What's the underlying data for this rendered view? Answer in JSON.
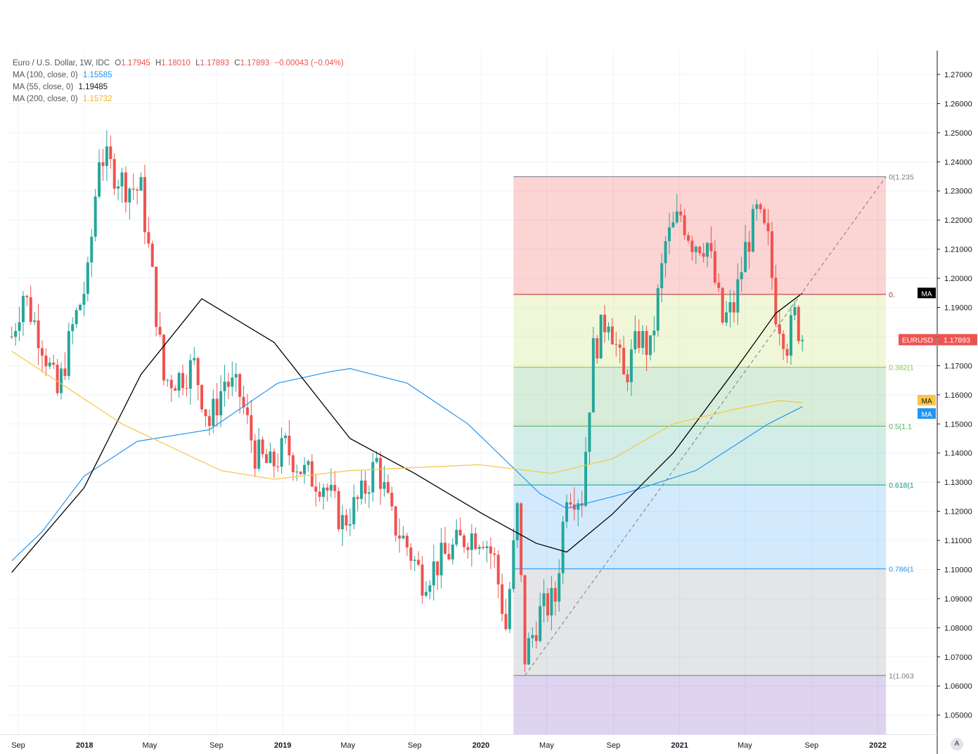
{
  "legend": {
    "title": "Euro / U.S. Dollar, 1W, IDC",
    "o_label": "O",
    "o": "1.17945",
    "h_label": "H",
    "h": "1.18010",
    "l_label": "L",
    "l": "1.17893",
    "c_label": "C",
    "c": "1.17893",
    "change": "−0.00043 (−0.04%)",
    "ma100_label": "MA (100, close, 0)",
    "ma100_value": "1.15585",
    "ma55_label": "MA (55, close, 0)",
    "ma55_value": "1.19485",
    "ma200_label": "MA (200, close, 0)",
    "ma200_value": "1.15732"
  },
  "colors": {
    "up": "#26a69a",
    "down": "#ef5350",
    "ma100": "#2196f3",
    "ma55": "#000000",
    "ma200": "#f7c548"
  },
  "auto_button": "A",
  "chart_data": {
    "type": "candlestick",
    "symbol": "EURUSD",
    "timeframe": "1W",
    "last_price": "1.17893",
    "ylim": [
      1.0434,
      1.2782
    ],
    "y_ticks": [
      "1.05000",
      "1.06000",
      "1.07000",
      "1.08000",
      "1.09000",
      "1.10000",
      "1.11000",
      "1.12000",
      "1.13000",
      "1.14000",
      "1.15000",
      "1.16000",
      "1.17000",
      "1.18000",
      "1.19000",
      "1.20000",
      "1.21000",
      "1.22000",
      "1.23000",
      "1.24000",
      "1.25000",
      "1.26000",
      "1.27000"
    ],
    "x_ticks": [
      {
        "label": "Sep",
        "date": "2017-09-01",
        "bold": false
      },
      {
        "label": "2018",
        "date": "2018-01-01",
        "bold": true
      },
      {
        "label": "May",
        "date": "2018-05-01",
        "bold": false
      },
      {
        "label": "Sep",
        "date": "2018-09-01",
        "bold": false
      },
      {
        "label": "2019",
        "date": "2019-01-01",
        "bold": true
      },
      {
        "label": "May",
        "date": "2019-05-01",
        "bold": false
      },
      {
        "label": "Sep",
        "date": "2019-09-01",
        "bold": false
      },
      {
        "label": "2020",
        "date": "2020-01-01",
        "bold": true
      },
      {
        "label": "May",
        "date": "2020-05-01",
        "bold": false
      },
      {
        "label": "Sep",
        "date": "2020-09-01",
        "bold": false
      },
      {
        "label": "2021",
        "date": "2021-01-01",
        "bold": true
      },
      {
        "label": "May",
        "date": "2021-05-01",
        "bold": false
      },
      {
        "label": "Sep",
        "date": "2021-09-01",
        "bold": false
      },
      {
        "label": "2022",
        "date": "2022-01-01",
        "bold": true
      }
    ],
    "price_path": [
      {
        "date": "2017-08-20",
        "c": 1.18
      },
      {
        "date": "2017-09-10",
        "c": 1.195
      },
      {
        "date": "2017-10-15",
        "c": 1.178
      },
      {
        "date": "2017-11-12",
        "c": 1.16
      },
      {
        "date": "2017-12-10",
        "c": 1.183
      },
      {
        "date": "2018-01-07",
        "c": 1.2
      },
      {
        "date": "2018-01-28",
        "c": 1.243
      },
      {
        "date": "2018-02-18",
        "c": 1.238
      },
      {
        "date": "2018-03-18",
        "c": 1.232
      },
      {
        "date": "2018-04-15",
        "c": 1.23
      },
      {
        "date": "2018-05-06",
        "c": 1.2
      },
      {
        "date": "2018-05-27",
        "c": 1.165
      },
      {
        "date": "2018-06-24",
        "c": 1.166
      },
      {
        "date": "2018-07-22",
        "c": 1.17
      },
      {
        "date": "2018-08-19",
        "c": 1.15
      },
      {
        "date": "2018-09-16",
        "c": 1.165
      },
      {
        "date": "2018-10-14",
        "c": 1.16
      },
      {
        "date": "2018-11-11",
        "c": 1.14
      },
      {
        "date": "2018-12-09",
        "c": 1.135
      },
      {
        "date": "2019-01-06",
        "c": 1.142
      },
      {
        "date": "2019-02-10",
        "c": 1.133
      },
      {
        "date": "2019-03-17",
        "c": 1.13
      },
      {
        "date": "2019-04-21",
        "c": 1.116
      },
      {
        "date": "2019-05-26",
        "c": 1.125
      },
      {
        "date": "2019-06-23",
        "c": 1.137
      },
      {
        "date": "2019-07-21",
        "c": 1.117
      },
      {
        "date": "2019-08-18",
        "c": 1.108
      },
      {
        "date": "2019-09-15",
        "c": 1.097
      },
      {
        "date": "2019-10-13",
        "c": 1.102
      },
      {
        "date": "2019-11-10",
        "c": 1.107
      },
      {
        "date": "2019-12-08",
        "c": 1.112
      },
      {
        "date": "2020-01-05",
        "c": 1.112
      },
      {
        "date": "2020-01-26",
        "c": 1.103
      },
      {
        "date": "2020-02-16",
        "c": 1.08
      },
      {
        "date": "2020-03-08",
        "c": 1.12
      },
      {
        "date": "2020-03-22",
        "c": 1.07
      },
      {
        "date": "2020-04-19",
        "c": 1.085
      },
      {
        "date": "2020-05-17",
        "c": 1.09
      },
      {
        "date": "2020-06-07",
        "c": 1.128
      },
      {
        "date": "2020-07-05",
        "c": 1.125
      },
      {
        "date": "2020-07-26",
        "c": 1.175
      },
      {
        "date": "2020-08-23",
        "c": 1.188
      },
      {
        "date": "2020-09-20",
        "c": 1.165
      },
      {
        "date": "2020-10-18",
        "c": 1.18
      },
      {
        "date": "2020-11-08",
        "c": 1.175
      },
      {
        "date": "2020-12-06",
        "c": 1.212
      },
      {
        "date": "2021-01-03",
        "c": 1.222
      },
      {
        "date": "2021-01-24",
        "c": 1.213
      },
      {
        "date": "2021-02-21",
        "c": 1.212
      },
      {
        "date": "2021-03-21",
        "c": 1.185
      },
      {
        "date": "2021-04-11",
        "c": 1.19
      },
      {
        "date": "2021-05-02",
        "c": 1.21
      },
      {
        "date": "2021-05-23",
        "c": 1.222
      },
      {
        "date": "2021-06-13",
        "c": 1.212
      },
      {
        "date": "2021-06-27",
        "c": 1.189
      },
      {
        "date": "2021-07-18",
        "c": 1.178
      },
      {
        "date": "2021-08-01",
        "c": 1.187
      },
      {
        "date": "2021-08-15",
        "c": 1.1789
      }
    ],
    "series": [
      {
        "name": "MA (100, close, 0)",
        "color": "#2196f3",
        "points": [
          {
            "date": "2017-08-20",
            "v": 1.103
          },
          {
            "date": "2017-10-15",
            "v": 1.113
          },
          {
            "date": "2017-12-31",
            "v": 1.132
          },
          {
            "date": "2018-04-08",
            "v": 1.144
          },
          {
            "date": "2018-08-19",
            "v": 1.148
          },
          {
            "date": "2018-12-23",
            "v": 1.164
          },
          {
            "date": "2019-03-31",
            "v": 1.168
          },
          {
            "date": "2019-05-05",
            "v": 1.169
          },
          {
            "date": "2019-08-18",
            "v": 1.164
          },
          {
            "date": "2019-12-08",
            "v": 1.15
          },
          {
            "date": "2020-04-19",
            "v": 1.126
          },
          {
            "date": "2020-06-07",
            "v": 1.121
          },
          {
            "date": "2020-09-20",
            "v": 1.126
          },
          {
            "date": "2021-01-31",
            "v": 1.134
          },
          {
            "date": "2021-06-13",
            "v": 1.15
          },
          {
            "date": "2021-08-15",
            "v": 1.1559
          }
        ]
      },
      {
        "name": "MA (55, close, 0)",
        "color": "#000000",
        "points": [
          {
            "date": "2017-08-20",
            "v": 1.099
          },
          {
            "date": "2017-12-31",
            "v": 1.128
          },
          {
            "date": "2018-04-15",
            "v": 1.167
          },
          {
            "date": "2018-08-05",
            "v": 1.193
          },
          {
            "date": "2018-12-16",
            "v": 1.178
          },
          {
            "date": "2019-05-05",
            "v": 1.145
          },
          {
            "date": "2019-09-01",
            "v": 1.133
          },
          {
            "date": "2020-01-05",
            "v": 1.119
          },
          {
            "date": "2020-04-12",
            "v": 1.109
          },
          {
            "date": "2020-06-07",
            "v": 1.106
          },
          {
            "date": "2020-08-30",
            "v": 1.119
          },
          {
            "date": "2020-12-20",
            "v": 1.14
          },
          {
            "date": "2021-04-11",
            "v": 1.168
          },
          {
            "date": "2021-06-27",
            "v": 1.188
          },
          {
            "date": "2021-08-15",
            "v": 1.1949
          }
        ]
      },
      {
        "name": "MA (200, close, 0)",
        "color": "#f7c548",
        "points": [
          {
            "date": "2017-08-20",
            "v": 1.175
          },
          {
            "date": "2018-03-11",
            "v": 1.15
          },
          {
            "date": "2018-09-09",
            "v": 1.134
          },
          {
            "date": "2018-12-16",
            "v": 1.131
          },
          {
            "date": "2019-05-05",
            "v": 1.134
          },
          {
            "date": "2019-12-29",
            "v": 1.136
          },
          {
            "date": "2020-05-10",
            "v": 1.133
          },
          {
            "date": "2020-08-30",
            "v": 1.138
          },
          {
            "date": "2020-12-20",
            "v": 1.15
          },
          {
            "date": "2021-04-11",
            "v": 1.155
          },
          {
            "date": "2021-07-04",
            "v": 1.158
          },
          {
            "date": "2021-08-15",
            "v": 1.1573
          }
        ]
      }
    ],
    "fib": {
      "start_date": "2020-03-01",
      "end_date": "2022-01-16",
      "high": 1.2349,
      "low": 1.0636,
      "levels": [
        {
          "label": "0(1.235",
          "ratio": 0,
          "color": "#787b86",
          "fill": "rgba(239,83,80,0.25)"
        },
        {
          "label": "0.",
          "ratio": 0.236,
          "color": "#b22833",
          "fill": "rgba(195,225,100,0.25)"
        },
        {
          "label": "0.382(1",
          "ratio": 0.382,
          "color": "#8bc34a",
          "fill": "rgba(76,175,80,0.22)"
        },
        {
          "label": "0.5(1.1",
          "ratio": 0.5,
          "color": "#4caf50",
          "fill": "rgba(8,153,129,0.18)"
        },
        {
          "label": "0.618(1",
          "ratio": 0.618,
          "color": "#089981",
          "fill": "rgba(33,150,243,0.20)"
        },
        {
          "label": "0.786(1",
          "ratio": 0.786,
          "color": "#2196f3",
          "fill": "rgba(120,123,134,0.20)"
        },
        {
          "label": "1(1.063",
          "ratio": 1,
          "color": "#787b86",
          "fill": "rgba(103,58,183,0.22)"
        }
      ]
    },
    "trendline": {
      "from_date": "2020-03-22",
      "from": 1.0636,
      "to_date": "2022-01-16",
      "to": 1.2349
    },
    "price_tags": [
      {
        "label": "EURUSD",
        "value": "1.17893",
        "color": "#ef5350"
      },
      {
        "label": "MA",
        "value": "1.19485",
        "color": "#000000"
      },
      {
        "label": "MA",
        "value": "1.15732",
        "color": "#f7c548"
      },
      {
        "label": "MA",
        "value": "1.15585",
        "color": "#2196f3"
      }
    ]
  }
}
